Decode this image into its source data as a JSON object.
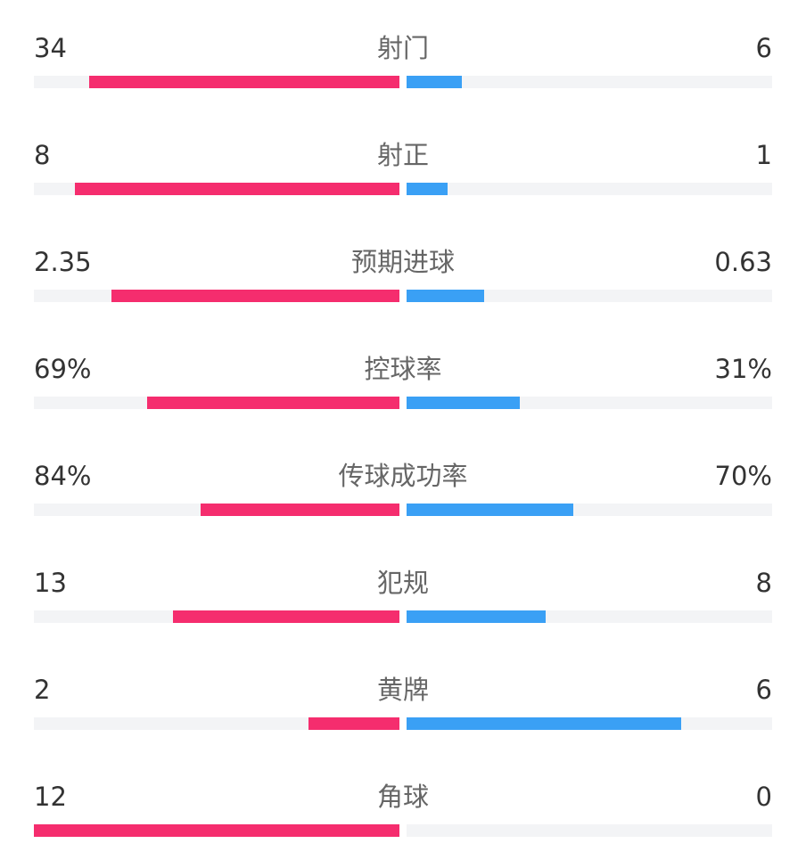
{
  "colors": {
    "home": "#f52d6e",
    "away": "#3aa0f5",
    "track": "#f3f4f6"
  },
  "stats": [
    {
      "label": "射门",
      "home": "34",
      "away": "6",
      "home_fraction": 0.85,
      "away_fraction": 0.15
    },
    {
      "label": "射正",
      "home": "8",
      "away": "1",
      "home_fraction": 0.889,
      "away_fraction": 0.111
    },
    {
      "label": "预期进球",
      "home": "2.35",
      "away": "0.63",
      "home_fraction": 0.789,
      "away_fraction": 0.211
    },
    {
      "label": "控球率",
      "home": "69%",
      "away": "31%",
      "home_fraction": 0.69,
      "away_fraction": 0.31
    },
    {
      "label": "传球成功率",
      "home": "84%",
      "away": "70%",
      "home_fraction": 0.545,
      "away_fraction": 0.455
    },
    {
      "label": "犯规",
      "home": "13",
      "away": "8",
      "home_fraction": 0.619,
      "away_fraction": 0.381
    },
    {
      "label": "黄牌",
      "home": "2",
      "away": "6",
      "home_fraction": 0.25,
      "away_fraction": 0.75
    },
    {
      "label": "角球",
      "home": "12",
      "away": "0",
      "home_fraction": 1.0,
      "away_fraction": 0.0
    }
  ]
}
